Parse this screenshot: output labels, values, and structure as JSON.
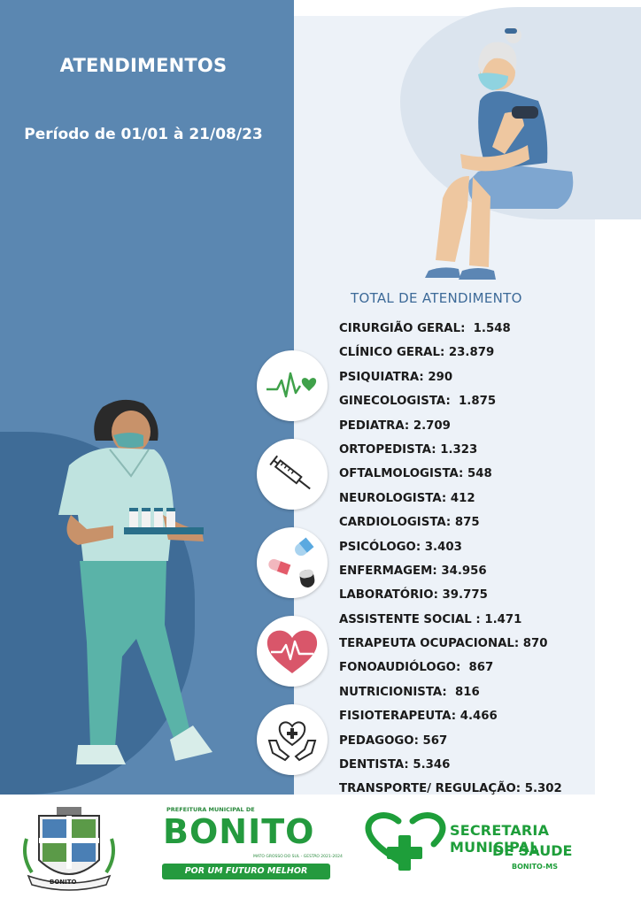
{
  "header": {
    "title": "ATENDIMENTOS",
    "period": "Período de 01/01 à 21/08/23"
  },
  "summary": {
    "heading": "TOTAL DE  ATENDIMENTO",
    "items": [
      {
        "label": "CIRURGIÃO GERAL:  1.548"
      },
      {
        "label": "CLÍNICO GERAL: 23.879"
      },
      {
        "label": "PSIQUIATRA: 290"
      },
      {
        "label": "GINECOLOGISTA:  1.875"
      },
      {
        "label": "PEDIATRA: 2.709"
      },
      {
        "label": "ORTOPEDISTA: 1.323"
      },
      {
        "label": "OFTALMOLOGISTA: 548"
      },
      {
        "label": "NEUROLOGISTA: 412"
      },
      {
        "label": "CARDIOLOGISTA: 875"
      },
      {
        "label": "PSICÓLOGO: 3.403"
      },
      {
        "label": "ENFERMAGEM: 34.956"
      },
      {
        "label": "LABORATÓRIO: 39.775"
      },
      {
        "label": "ASSISTENTE SOCIAL : 1.471"
      },
      {
        "label": "TERAPEUTA OCUPACIONAL: 870"
      },
      {
        "label": "FONOAUDIÓLOGO:  867"
      },
      {
        "label": "NUTRICIONISTA:  816"
      },
      {
        "label": "FISIOTERAPEUTA: 4.466"
      },
      {
        "label": "PEDAGOGO: 567"
      },
      {
        "label": "DENTISTA: 5.346"
      },
      {
        "label": "TRANSPORTE/ REGULAÇÃO: 5.302"
      }
    ]
  },
  "icons": [
    "heartbeat-icon",
    "syringe-icon",
    "pills-icon",
    "heart-pulse-icon",
    "care-hands-icon"
  ],
  "footer": {
    "coat_of_arms_label": "BONITO",
    "prefeitura_label": "PREFEITURA MUNICIPAL DE",
    "city_name": "BONITO",
    "state_label": "MATO GROSSO DO SUL - GESTÃO 2021-2024",
    "slogan": "POR UM FUTURO MELHOR",
    "secretaria_line1": "SECRETARIA MUNICIPAL",
    "secretaria_line2": "DE SAUDE",
    "secretaria_line3": "BONITO-MS"
  },
  "colors": {
    "panel_blue": "#5b87b1",
    "dark_blue": "#3f6c97",
    "light_panel": "#edf2f8",
    "brand_green": "#249a3e",
    "heart_red": "#d9566a"
  }
}
